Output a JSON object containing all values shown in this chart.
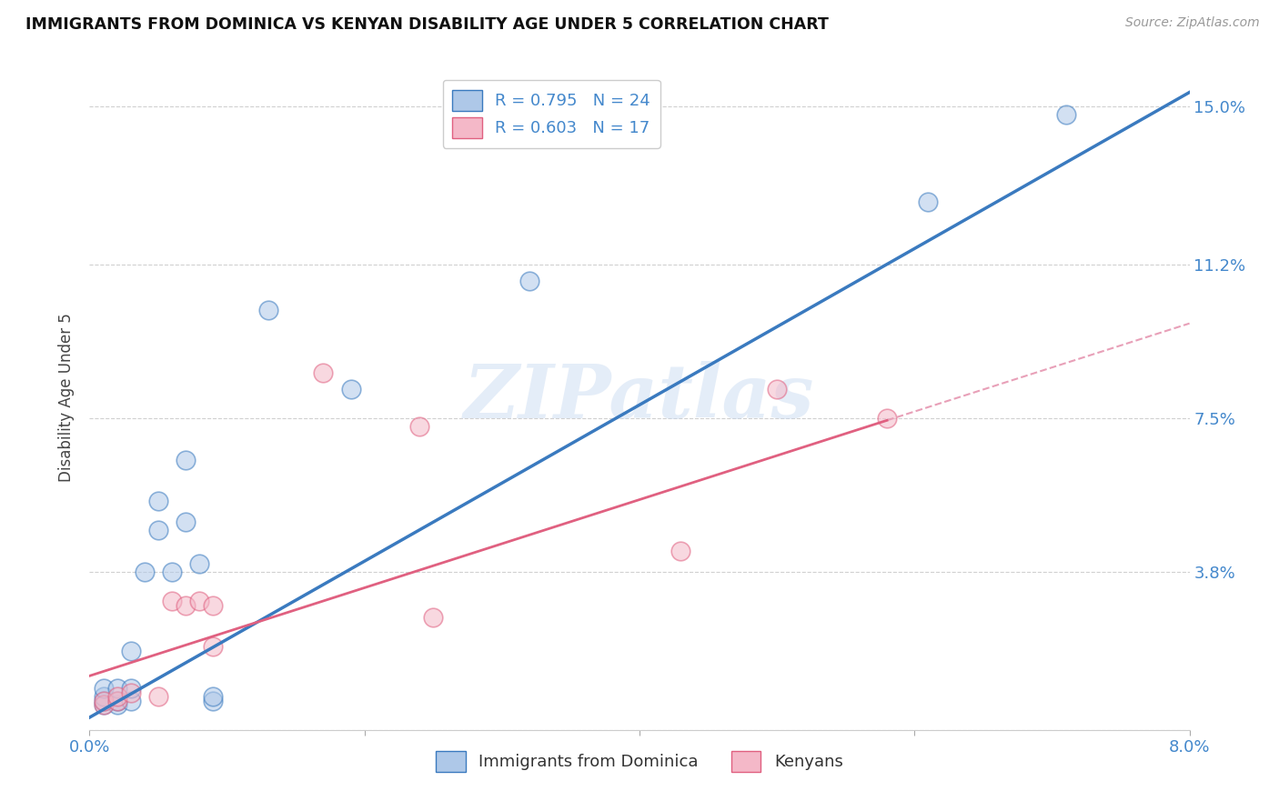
{
  "title": "IMMIGRANTS FROM DOMINICA VS KENYAN DISABILITY AGE UNDER 5 CORRELATION CHART",
  "source": "Source: ZipAtlas.com",
  "ylabel": "Disability Age Under 5",
  "watermark": "ZIPatlas",
  "blue_R": 0.795,
  "blue_N": 24,
  "pink_R": 0.603,
  "pink_N": 17,
  "xlim": [
    0.0,
    0.08
  ],
  "ylim": [
    0.0,
    0.16
  ],
  "xticks": [
    0.0,
    0.02,
    0.04,
    0.06,
    0.08
  ],
  "xticklabels": [
    "0.0%",
    "",
    "",
    "",
    "8.0%"
  ],
  "yticks": [
    0.0,
    0.038,
    0.075,
    0.112,
    0.15
  ],
  "yticklabels": [
    "",
    "3.8%",
    "7.5%",
    "11.2%",
    "15.0%"
  ],
  "blue_scatter_x": [
    0.001,
    0.001,
    0.001,
    0.001,
    0.002,
    0.002,
    0.002,
    0.003,
    0.003,
    0.003,
    0.004,
    0.005,
    0.005,
    0.006,
    0.007,
    0.007,
    0.008,
    0.009,
    0.009,
    0.013,
    0.019,
    0.032,
    0.061,
    0.071
  ],
  "blue_scatter_y": [
    0.006,
    0.007,
    0.008,
    0.01,
    0.006,
    0.007,
    0.01,
    0.007,
    0.01,
    0.019,
    0.038,
    0.048,
    0.055,
    0.038,
    0.05,
    0.065,
    0.04,
    0.007,
    0.008,
    0.101,
    0.082,
    0.108,
    0.127,
    0.148
  ],
  "pink_scatter_x": [
    0.001,
    0.001,
    0.002,
    0.002,
    0.003,
    0.005,
    0.006,
    0.007,
    0.008,
    0.009,
    0.009,
    0.017,
    0.024,
    0.025,
    0.043,
    0.05,
    0.058
  ],
  "pink_scatter_y": [
    0.006,
    0.007,
    0.007,
    0.008,
    0.009,
    0.008,
    0.031,
    0.03,
    0.031,
    0.03,
    0.02,
    0.086,
    0.073,
    0.027,
    0.043,
    0.082,
    0.075
  ],
  "blue_color": "#aec8e8",
  "pink_color": "#f4b8c8",
  "blue_line_color": "#3a7abf",
  "pink_line_color": "#e06080",
  "pink_dash_color": "#e8a0b8",
  "grid_color": "#d0d0d0",
  "tick_color": "#4488cc",
  "background_color": "#ffffff",
  "blue_line_intercept": 0.003,
  "blue_line_slope": 1.88,
  "pink_line_intercept": 0.013,
  "pink_line_slope": 1.06
}
